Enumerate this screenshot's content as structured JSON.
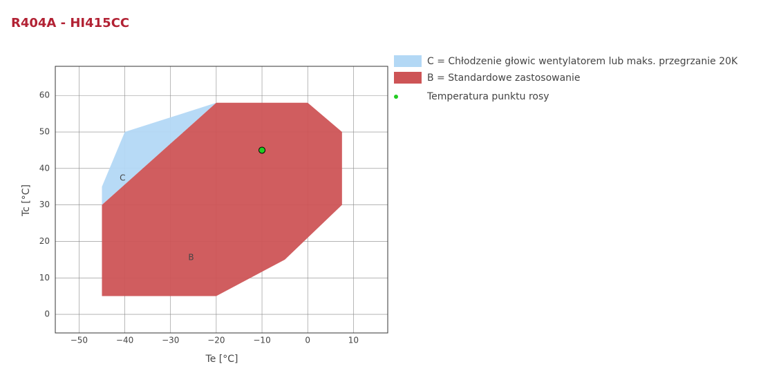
{
  "chart_data": {
    "type": "envelope",
    "title": "R404A - HI415CC",
    "xlabel": "Te [°C]",
    "ylabel": "Tc [°C]",
    "xlim": [
      -55.2,
      17.5
    ],
    "ylim": [
      -5.1,
      68
    ],
    "xticks": [
      {
        "value": -50,
        "label": "−50"
      },
      {
        "value": -40,
        "label": "−40"
      },
      {
        "value": -30,
        "label": "−30"
      },
      {
        "value": -20,
        "label": "−20"
      },
      {
        "value": -10,
        "label": "−10"
      },
      0,
      10
    ],
    "yticks": [
      0,
      10,
      20,
      30,
      40,
      50,
      60
    ],
    "grid": true,
    "series": [
      {
        "name": "C = Chłodzenie głowic wentylatorem lub maks. przegrzanie 20K",
        "kind": "area",
        "color": "#b3d8f5",
        "x": [
          -45,
          -45,
          -40,
          -20
        ],
        "y": [
          30,
          35,
          50,
          58
        ]
      },
      {
        "name": "B = Standardowe zastosowanie",
        "kind": "area",
        "color": "#cd5456",
        "x": [
          -45,
          -45,
          -20,
          0,
          7.5,
          7.5,
          -5,
          -20
        ],
        "y": [
          5,
          30,
          58,
          58,
          50,
          30,
          15,
          5
        ]
      },
      {
        "name": "Temperatura punktu rosy",
        "kind": "point",
        "color": "#22cc22",
        "x": [
          -10
        ],
        "y": [
          45
        ]
      }
    ],
    "annotations": [
      {
        "text": "C",
        "x": -40.5,
        "y": 37.3
      },
      {
        "text": "B",
        "x": -25.5,
        "y": 15.5
      }
    ]
  }
}
